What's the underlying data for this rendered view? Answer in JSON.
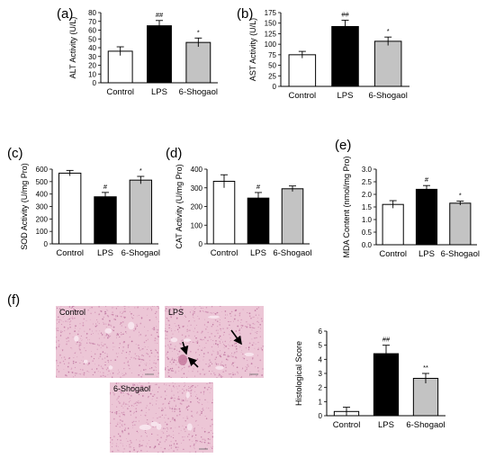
{
  "figure_label": "",
  "colors": {
    "control": "#ffffff",
    "lps": "#000000",
    "shogaol": "#c3c3c3",
    "tissue_base": "#ecc6d6",
    "tissue_dark": "#cf8fb1",
    "tissue_light": "#f8e6ee"
  },
  "histology": {
    "panel_label": "(f)",
    "images": [
      {
        "label": "Control",
        "arrows": 0
      },
      {
        "label": "LPS",
        "arrows": 3
      },
      {
        "label": "6-Shogaol",
        "arrows": 0
      }
    ]
  },
  "chart_data": [
    {
      "panel": "(a)",
      "type": "bar",
      "title": "",
      "xlabel": "",
      "ylabel": "ALT Activity (U/L)",
      "categories": [
        "Control",
        "LPS",
        "6-Shogaol"
      ],
      "values": [
        36,
        65,
        46
      ],
      "errors": [
        5,
        6,
        5
      ],
      "significance": [
        "",
        "##",
        "*"
      ],
      "ylim": [
        0,
        80
      ],
      "yticks": [
        0,
        10,
        20,
        30,
        40,
        50,
        60,
        70,
        80
      ],
      "grid": false
    },
    {
      "panel": "(b)",
      "type": "bar",
      "title": "",
      "xlabel": "",
      "ylabel": "AST Activity (U/L)",
      "categories": [
        "Control",
        "LPS",
        "6-Shogaol"
      ],
      "values": [
        75,
        142,
        107
      ],
      "errors": [
        8,
        15,
        10
      ],
      "significance": [
        "",
        "##",
        "*"
      ],
      "ylim": [
        0,
        175
      ],
      "yticks": [
        0,
        25,
        50,
        75,
        100,
        125,
        150,
        175
      ],
      "grid": false
    },
    {
      "panel": "(c)",
      "type": "bar",
      "title": "",
      "xlabel": "",
      "ylabel": "SOD Activity (U/mg Pro)",
      "categories": [
        "Control",
        "LPS",
        "6-Shogaol"
      ],
      "values": [
        568,
        378,
        512
      ],
      "errors": [
        22,
        35,
        30
      ],
      "significance": [
        "",
        "#",
        "*"
      ],
      "ylim": [
        0,
        600
      ],
      "yticks": [
        0,
        100,
        200,
        300,
        400,
        500,
        600
      ],
      "grid": false
    },
    {
      "panel": "(d)",
      "type": "bar",
      "title": "",
      "xlabel": "",
      "ylabel": "CAT Activity (U/mg Pro)",
      "categories": [
        "Control",
        "LPS",
        "6-Shogaol"
      ],
      "values": [
        335,
        245,
        295
      ],
      "errors": [
        35,
        30,
        15
      ],
      "significance": [
        "",
        "#",
        ""
      ],
      "ylim": [
        0,
        400
      ],
      "yticks": [
        0,
        100,
        200,
        300,
        400
      ],
      "grid": false
    },
    {
      "panel": "(e)",
      "type": "bar",
      "title": "",
      "xlabel": "",
      "ylabel": "MDA Content (nmol/mg Pro)",
      "categories": [
        "Control",
        "LPS",
        "6-Shogaol"
      ],
      "values": [
        1.6,
        2.2,
        1.65
      ],
      "errors": [
        0.15,
        0.15,
        0.08
      ],
      "significance": [
        "",
        "#",
        "*"
      ],
      "ylim": [
        0.0,
        3.0
      ],
      "yticks": [
        0.0,
        0.5,
        1.0,
        1.5,
        2.0,
        2.5,
        3.0
      ],
      "grid": false
    },
    {
      "panel": "",
      "type": "bar",
      "title": "",
      "xlabel": "",
      "ylabel": "Histological Score",
      "categories": [
        "Control",
        "LPS",
        "6-Shogaol"
      ],
      "values": [
        0.3,
        4.4,
        2.65
      ],
      "errors": [
        0.3,
        0.6,
        0.35
      ],
      "significance": [
        "",
        "##",
        "**"
      ],
      "ylim": [
        0,
        6
      ],
      "yticks": [
        0,
        1,
        2,
        3,
        4,
        5,
        6
      ],
      "grid": false
    }
  ]
}
